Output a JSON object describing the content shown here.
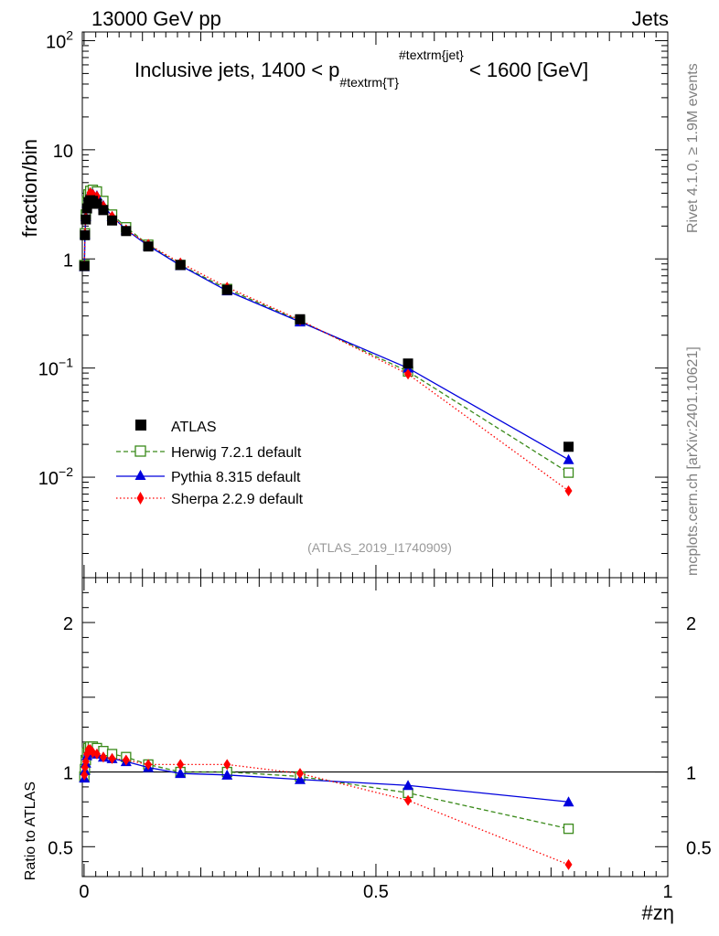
{
  "header": {
    "left": "13000 GeV pp",
    "right": "Jets"
  },
  "side_labels": {
    "rivet": "Rivet 4.1.0, ≥ 1.9M events",
    "mcplots": "mcplots.cern.ch [arXiv:2401.10621]"
  },
  "chart_data": [
    {
      "type": "scatter",
      "panel": "main",
      "title": "Inclusive jets, 1400 < p_{#textrm{T}}^{#textrm{jet}} < 1600 [GeV]",
      "title_parts": {
        "prefix": "Inclusive jets, 1400 < p",
        "sub": "#textrm{T}",
        "sup": "#textrm{jet}",
        "suffix": " < 1600 [GeV]"
      },
      "ylabel": "fraction/bin",
      "yscale": "log",
      "ylim": [
        0.0012,
        120
      ],
      "xlim": [
        -0.003,
        1.0
      ],
      "y_ticks": [
        {
          "value": 100,
          "base": "10",
          "exp": "2"
        },
        {
          "value": 10,
          "base": "10",
          "exp": ""
        },
        {
          "value": 1,
          "base": "1",
          "exp": ""
        },
        {
          "value": 0.1,
          "base": "10",
          "exp": "−1"
        },
        {
          "value": 0.01,
          "base": "10",
          "exp": "−2"
        }
      ],
      "x": [
        0.0005,
        0.0015,
        0.003,
        0.005,
        0.0075,
        0.0105,
        0.015,
        0.022,
        0.033,
        0.048,
        0.072,
        0.11,
        0.165,
        0.245,
        0.37,
        0.555,
        0.83
      ],
      "series": [
        {
          "name": "ATLAS",
          "style": "data",
          "color": "#000000",
          "values": [
            0.86,
            1.65,
            2.3,
            2.9,
            3.3,
            3.45,
            3.4,
            3.2,
            2.8,
            2.25,
            1.8,
            1.3,
            0.88,
            0.52,
            0.28,
            0.11,
            0.019
          ]
        },
        {
          "name": "Herwig 7.2.1 default",
          "style": "herwig",
          "color": "#3a8a1a",
          "values": [
            0.88,
            1.72,
            2.55,
            3.35,
            3.9,
            4.2,
            4.3,
            4.15,
            3.4,
            2.55,
            1.95,
            1.35,
            0.88,
            0.53,
            0.27,
            0.093,
            0.011
          ]
        },
        {
          "name": "Pythia 8.315 default",
          "style": "pythia",
          "color": "#0000dd",
          "values": [
            0.85,
            1.68,
            2.45,
            3.25,
            3.75,
            4.05,
            3.95,
            3.8,
            3.1,
            2.45,
            1.85,
            1.32,
            0.87,
            0.51,
            0.265,
            0.1,
            0.0145
          ]
        },
        {
          "name": "Sherpa 2.2.9 default",
          "style": "sherpa",
          "color": "#ff0000",
          "values": [
            0.87,
            1.7,
            2.4,
            3.2,
            3.7,
            4.05,
            3.9,
            3.75,
            3.05,
            2.45,
            1.85,
            1.36,
            0.92,
            0.55,
            0.275,
            0.088,
            0.0075
          ]
        }
      ],
      "legend": [
        "ATLAS",
        "Herwig 7.2.1 default",
        "Pythia 8.315 default",
        "Sherpa 2.2.9 default"
      ],
      "annotation": "(ATLAS_2019_I1740909)"
    },
    {
      "type": "scatter",
      "panel": "ratio",
      "ylabel": "Ratio to ATLAS",
      "ylim": [
        0.3,
        2.3
      ],
      "xlim": [
        -0.003,
        1.0
      ],
      "xlabel": "#zη",
      "x_ticks": [
        {
          "value": 0,
          "label": "0"
        },
        {
          "value": 0.5,
          "label": "0.5"
        },
        {
          "value": 1,
          "label": "1"
        }
      ],
      "y_ticks": [
        {
          "value": 2,
          "label": "2"
        },
        {
          "value": 1,
          "label": "1"
        },
        {
          "value": 0.5,
          "label": "0.5"
        }
      ],
      "reference": 1,
      "x": [
        0.0005,
        0.0015,
        0.003,
        0.005,
        0.0075,
        0.0105,
        0.015,
        0.022,
        0.033,
        0.048,
        0.072,
        0.11,
        0.165,
        0.245,
        0.37,
        0.555,
        0.83
      ],
      "series": [
        {
          "name": "Herwig 7.2.1 default",
          "style": "herwig",
          "color": "#3a8a1a",
          "values": [
            0.97,
            1.02,
            1.08,
            1.13,
            1.16,
            1.17,
            1.17,
            1.16,
            1.14,
            1.12,
            1.1,
            1.05,
            1.0,
            1.0,
            0.97,
            0.86,
            0.62
          ],
          "errors": [
            0.04,
            0.03,
            0.02,
            0.02,
            0.02,
            0.02,
            0.02,
            0.02,
            0.02,
            0.01,
            0.01,
            0.01,
            0.01,
            0.01,
            0.01,
            0.02,
            0.03
          ]
        },
        {
          "name": "Pythia 8.315 default",
          "style": "pythia",
          "color": "#0000dd",
          "values": [
            0.96,
            1.01,
            1.06,
            1.11,
            1.14,
            1.14,
            1.13,
            1.12,
            1.1,
            1.09,
            1.07,
            1.03,
            0.99,
            0.98,
            0.95,
            0.91,
            0.8
          ],
          "errors": [
            0.03,
            0.02,
            0.02,
            0.02,
            0.02,
            0.02,
            0.02,
            0.01,
            0.01,
            0.01,
            0.01,
            0.01,
            0.01,
            0.01,
            0.01,
            0.01,
            0.03
          ]
        },
        {
          "name": "Sherpa 2.2.9 default",
          "style": "sherpa",
          "color": "#ff0000",
          "values": [
            0.98,
            1.03,
            1.07,
            1.12,
            1.15,
            1.15,
            1.13,
            1.12,
            1.1,
            1.09,
            1.08,
            1.05,
            1.05,
            1.05,
            0.99,
            0.81,
            0.38
          ],
          "errors": [
            0.03,
            0.02,
            0.02,
            0.02,
            0.02,
            0.02,
            0.02,
            0.01,
            0.01,
            0.01,
            0.01,
            0.01,
            0.01,
            0.01,
            0.01,
            0.01,
            0.02
          ]
        }
      ]
    }
  ]
}
